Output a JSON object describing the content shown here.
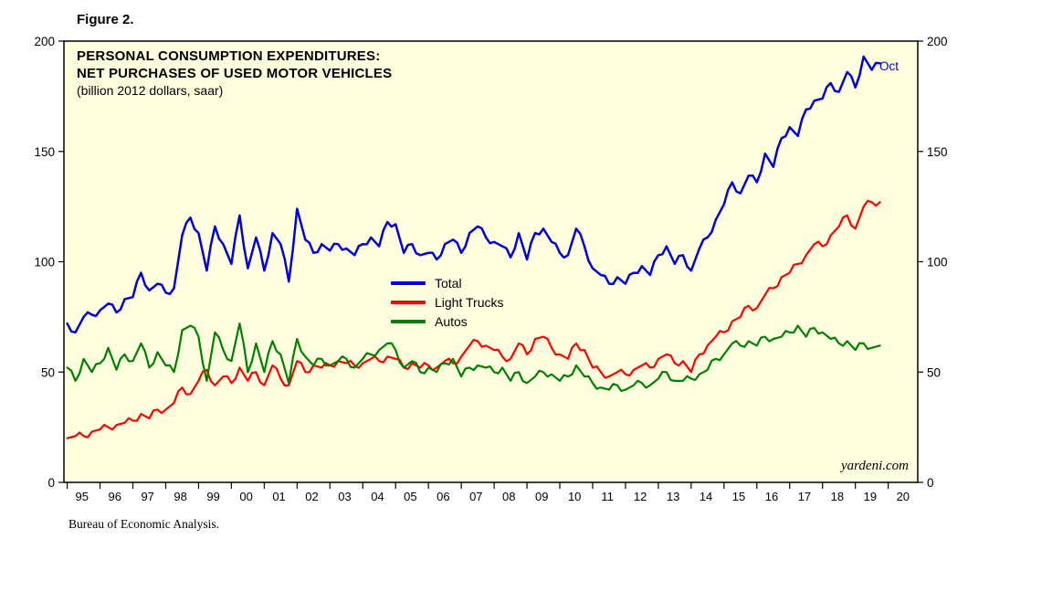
{
  "page": {
    "figure_label": "Figure 2.",
    "source_note": "Bureau of Economic Analysis.",
    "watermark": "yardeni.com",
    "end_label": "Oct"
  },
  "chart_data": {
    "type": "line",
    "title_line1": "PERSONAL CONSUMPTION EXPENDITURES:",
    "title_line2": "NET PURCHASES OF USED MOTOR VEHICLES",
    "subtitle": "(billion 2012 dollars, saar)",
    "ylabel": "",
    "xlabel": "",
    "ylim": [
      0,
      200
    ],
    "y_ticks": [
      0,
      50,
      100,
      150,
      200
    ],
    "grid": false,
    "plot_background": "#FFFFE0",
    "axis_color": "#000000",
    "legend_position": "inside center-left",
    "x_axis_range": [
      1994.9,
      2020.9
    ],
    "x_start": 1995.0,
    "x_interval": 0.25,
    "x_tick_years": [
      1995,
      1996,
      1997,
      1998,
      1999,
      2000,
      2001,
      2002,
      2003,
      2004,
      2005,
      2006,
      2007,
      2008,
      2009,
      2010,
      2011,
      2012,
      2013,
      2014,
      2015,
      2016,
      2017,
      2018,
      2019,
      2020
    ],
    "x_tick_labels": [
      "95",
      "96",
      "97",
      "98",
      "99",
      "00",
      "01",
      "02",
      "03",
      "04",
      "05",
      "06",
      "07",
      "08",
      "09",
      "10",
      "11",
      "12",
      "13",
      "14",
      "15",
      "16",
      "17",
      "18",
      "19",
      "20"
    ],
    "end_annotation": {
      "label": "Oct",
      "x": 2019.75,
      "series": "Total"
    },
    "series": [
      {
        "name": "Total",
        "color": "#0000dd",
        "values": [
          72,
          68,
          75,
          76,
          78,
          81,
          77,
          83,
          84,
          95,
          87,
          90,
          86,
          88,
          112,
          120,
          113,
          96,
          116,
          108,
          99,
          121,
          97,
          111,
          96,
          113,
          108,
          91,
          124,
          110,
          104,
          108,
          105,
          108,
          106,
          103,
          108,
          111,
          107,
          118,
          117,
          104,
          108,
          103,
          104,
          101,
          108,
          110,
          104,
          113,
          116,
          111,
          109,
          107,
          102,
          113,
          101,
          113,
          115,
          109,
          104,
          103,
          115,
          107,
          97,
          94,
          90,
          93,
          90,
          95,
          98,
          94,
          103,
          107,
          99,
          103,
          96,
          106,
          111,
          119,
          126,
          136,
          131,
          139,
          136,
          149,
          143,
          156,
          161,
          157,
          169,
          173,
          174,
          181,
          177,
          186,
          179,
          193,
          187,
          190
        ]
      },
      {
        "name": "Light Trucks",
        "color": "#ff0000",
        "values": [
          20,
          21,
          21,
          23,
          24,
          25,
          26,
          27,
          28,
          31,
          29,
          33,
          33,
          36,
          43,
          40,
          46,
          51,
          44,
          48,
          45,
          52,
          46,
          50,
          44,
          53,
          47,
          44,
          55,
          50,
          53,
          52,
          53,
          55,
          54,
          53,
          54,
          56,
          55,
          57,
          56,
          52,
          54,
          52,
          53,
          52,
          55,
          54,
          57,
          62,
          64,
          62,
          60,
          57,
          56,
          63,
          58,
          65,
          66,
          61,
          58,
          56,
          63,
          60,
          52,
          50,
          48,
          50,
          49,
          51,
          53,
          52,
          56,
          58,
          54,
          55,
          50,
          58,
          62,
          66,
          68,
          73,
          75,
          80,
          79,
          85,
          88,
          93,
          95,
          99,
          103,
          108,
          107,
          112,
          116,
          121,
          115,
          125,
          127,
          127
        ]
      },
      {
        "name": "Autos",
        "color": "#008000",
        "values": [
          52,
          46,
          56,
          50,
          54,
          61,
          51,
          58,
          55,
          63,
          52,
          59,
          53,
          50,
          69,
          71,
          66,
          46,
          68,
          60,
          55,
          72,
          50,
          63,
          50,
          64,
          58,
          45,
          65,
          57,
          53,
          56,
          53,
          55,
          56,
          52,
          56,
          58,
          60,
          63,
          60,
          52,
          55,
          50,
          52,
          50,
          54,
          56,
          48,
          52,
          53,
          52,
          50,
          52,
          46,
          50,
          45,
          48,
          50,
          49,
          46,
          48,
          53,
          48,
          45,
          43,
          42,
          44,
          42,
          44,
          45,
          44,
          47,
          50,
          46,
          46,
          47,
          49,
          51,
          56,
          58,
          63,
          62,
          64,
          62,
          66,
          65,
          66,
          68,
          71,
          66,
          70,
          68,
          65,
          63,
          64,
          60,
          63,
          61,
          62
        ]
      }
    ]
  }
}
